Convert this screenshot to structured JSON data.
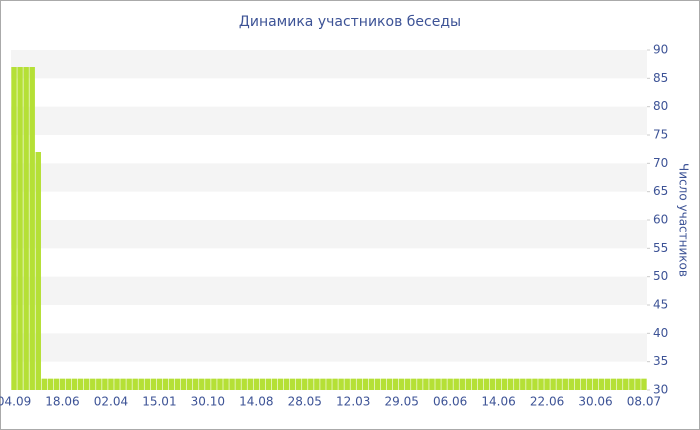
{
  "chart_data": {
    "type": "bar",
    "title": "Динамика участников беседы",
    "y_label": "Число участников",
    "categories": [
      "04.09",
      null,
      null,
      null,
      null,
      null,
      null,
      null,
      "18.06",
      null,
      null,
      null,
      null,
      null,
      null,
      null,
      "02.04",
      null,
      null,
      null,
      null,
      null,
      null,
      null,
      "15.01",
      null,
      null,
      null,
      null,
      null,
      null,
      null,
      "30.10",
      null,
      null,
      null,
      null,
      null,
      null,
      null,
      "14.08",
      null,
      null,
      null,
      null,
      null,
      null,
      null,
      "28.05",
      null,
      null,
      null,
      null,
      null,
      null,
      null,
      "12.03",
      null,
      null,
      null,
      null,
      null,
      null,
      null,
      "29.05",
      null,
      null,
      null,
      null,
      null,
      null,
      null,
      "06.06",
      null,
      null,
      null,
      null,
      null,
      null,
      null,
      "14.06",
      null,
      null,
      null,
      null,
      null,
      null,
      null,
      "22.06",
      null,
      null,
      null,
      null,
      null,
      null,
      null,
      "30.06",
      null,
      null,
      null,
      null,
      null,
      null,
      null,
      "08.07"
    ],
    "values": [
      87,
      87,
      87,
      87,
      72,
      32,
      32,
      32,
      32,
      32,
      32,
      32,
      32,
      32,
      32,
      32,
      32,
      32,
      32,
      32,
      32,
      32,
      32,
      32,
      32,
      32,
      32,
      32,
      32,
      32,
      32,
      32,
      32,
      32,
      32,
      32,
      32,
      32,
      32,
      32,
      32,
      32,
      32,
      32,
      32,
      32,
      32,
      32,
      32,
      32,
      32,
      32,
      32,
      32,
      32,
      32,
      32,
      32,
      32,
      32,
      32,
      32,
      32,
      32,
      32,
      32,
      32,
      32,
      32,
      32,
      32,
      32,
      32,
      32,
      32,
      32,
      32,
      32,
      32,
      32,
      32,
      32,
      32,
      32,
      32,
      32,
      32,
      32,
      32,
      32,
      32,
      32,
      32,
      32,
      32,
      32,
      32,
      32,
      32,
      32,
      32,
      32,
      32,
      32,
      32
    ],
    "color": "#b5e036",
    "ylim": [
      30,
      90
    ],
    "yticks": [
      30,
      35,
      40,
      45,
      50,
      55,
      60,
      65,
      70,
      75,
      80,
      85,
      90
    ],
    "y_axis_side": "right",
    "grid": true
  }
}
